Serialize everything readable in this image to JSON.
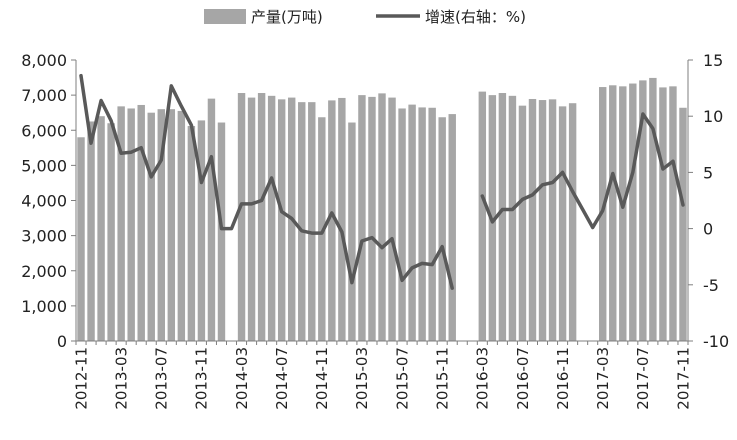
{
  "chart_data": {
    "type": "bar",
    "legend": {
      "placement": "top-center",
      "entries": [
        {
          "label": "产量(万吨)",
          "kind": "bar",
          "color": "#a6a6a6"
        },
        {
          "label": "增速(右轴：%)",
          "kind": "line",
          "color": "#595959"
        }
      ]
    },
    "x_tick_labels": [
      "2012-11",
      "2013-03",
      "2013-07",
      "2013-11",
      "2014-03",
      "2014-07",
      "2014-11",
      "2015-03",
      "2015-07",
      "2015-11",
      "2016-03",
      "2016-07",
      "2016-11",
      "2017-03",
      "2017-07",
      "2017-11"
    ],
    "y_left": {
      "range": [
        0,
        8000
      ],
      "ticks": [
        "0",
        "1,000",
        "2,000",
        "3,000",
        "4,000",
        "5,000",
        "6,000",
        "7,000",
        "8,000"
      ]
    },
    "y_right": {
      "range": [
        -10,
        15
      ],
      "ticks": [
        "-10",
        "-5",
        "0",
        "5",
        "10",
        "15"
      ]
    },
    "grid": false,
    "categories": [
      "2012-11",
      "2012-12",
      "2013-01",
      "2013-02",
      "2013-03",
      "2013-04",
      "2013-05",
      "2013-06",
      "2013-07",
      "2013-08",
      "2013-09",
      "2013-10",
      "2013-11",
      "2013-12",
      "2014-01",
      "2014-02",
      "2014-03",
      "2014-04",
      "2014-05",
      "2014-06",
      "2014-07",
      "2014-08",
      "2014-09",
      "2014-10",
      "2014-11",
      "2014-12",
      "2015-01",
      "2015-02",
      "2015-03",
      "2015-04",
      "2015-05",
      "2015-06",
      "2015-07",
      "2015-08",
      "2015-09",
      "2015-10",
      "2015-11",
      "2015-12",
      "2016-01",
      "2016-02",
      "2016-03",
      "2016-04",
      "2016-05",
      "2016-06",
      "2016-07",
      "2016-08",
      "2016-09",
      "2016-10",
      "2016-11",
      "2016-12",
      "2017-01",
      "2017-02",
      "2017-03",
      "2017-04",
      "2017-05",
      "2017-06",
      "2017-07",
      "2017-08",
      "2017-09",
      "2017-10",
      "2017-11"
    ],
    "series": [
      {
        "name": "产量(万吨)",
        "axis": "left",
        "values": [
          5800,
          6250,
          6400,
          6200,
          6680,
          6620,
          6720,
          6500,
          6600,
          6600,
          6550,
          6120,
          6280,
          6900,
          6220,
          null,
          7060,
          6930,
          7060,
          6980,
          6880,
          6930,
          6800,
          6800,
          6370,
          6850,
          6920,
          6220,
          7000,
          6950,
          7050,
          6930,
          6620,
          6730,
          6650,
          6640,
          6370,
          6460,
          null,
          null,
          7100,
          7000,
          7060,
          6980,
          6700,
          6890,
          6860,
          6880,
          6680,
          6770,
          null,
          null,
          7230,
          7280,
          7250,
          7330,
          7420,
          7490,
          7220,
          7250,
          6640
        ]
      },
      {
        "name": "增速(右轴：%)",
        "axis": "right",
        "values": [
          13.6,
          7.6,
          11.4,
          9.6,
          6.7,
          6.8,
          7.2,
          4.6,
          6.1,
          12.7,
          10.9,
          9.2,
          4.1,
          6.4,
          0,
          0,
          2.2,
          2.2,
          2.5,
          4.5,
          1.5,
          0.9,
          -0.2,
          -0.4,
          -0.4,
          1.4,
          -0.3,
          -4.8,
          -1.1,
          -0.8,
          -1.7,
          -0.9,
          -4.6,
          -3.5,
          -3.1,
          -3.2,
          -1.6,
          -5.3,
          null,
          null,
          2.9,
          0.6,
          1.7,
          1.7,
          2.6,
          3.0,
          3.9,
          4.1,
          5.0,
          3.3,
          1.7,
          0.1,
          1.6,
          4.9,
          1.9,
          5.0,
          10.2,
          8.9,
          5.3,
          6.0,
          2.1
        ]
      }
    ]
  }
}
